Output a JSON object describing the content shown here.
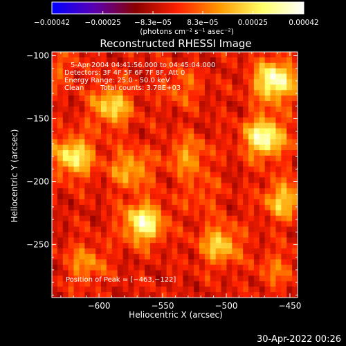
{
  "chart_data": {
    "type": "heatmap",
    "title": "Reconstructed RHESSI Image",
    "xlabel": "Heliocentric X (arcsec)",
    "ylabel": "Heliocentric Y (arcsec)",
    "xlim": [
      -637,
      -444
    ],
    "ylim": [
      -292,
      -97
    ],
    "x_ticks": [
      -600,
      -550,
      -500,
      -450
    ],
    "x_tick_labels": [
      "−600",
      "−550",
      "−500",
      "−450"
    ],
    "y_ticks": [
      -100,
      -150,
      -200,
      -250
    ],
    "y_tick_labels": [
      "−100",
      "−150",
      "−200",
      "−250"
    ],
    "colorbar": {
      "min": -0.00042,
      "max": 0.00042,
      "ticks": [
        -0.00042,
        -0.00025,
        -8.3e-05,
        8.3e-05,
        0.00025,
        0.00042
      ],
      "tick_labels": [
        "−0.00042",
        "−0.00025",
        "−8.3e−05",
        "8.3e−05",
        "0.00025",
        "0.00042"
      ],
      "label": "(photons cm⁻² s⁻¹ asec⁻²)",
      "colors": [
        "#0000ff",
        "#5a00b4",
        "#8a0000",
        "#ff2200",
        "#ff9900",
        "#ffff66",
        "#ffffff"
      ]
    },
    "annotations": {
      "time_range": "5-Apr-2004 04:41:56.000 to 04:45:04.000",
      "detectors": "Detectors: 3F 4F 5F 6F 7F 8F, Att 0",
      "energy_range": "Energy Range: 25.0 - 50.0 keV",
      "method": "Clean",
      "total_counts": "Total counts: 3.78E+03",
      "peak": "Position of Peak = [−463,−122]"
    },
    "peak": [
      -463,
      -122
    ],
    "bright_sources": [
      {
        "x": -462,
        "y": -120,
        "value": 0.00042
      },
      {
        "x": -470,
        "y": -165,
        "value": 0.0004
      },
      {
        "x": -565,
        "y": -233,
        "value": 0.00038
      },
      {
        "x": -620,
        "y": -180,
        "value": 0.00033
      },
      {
        "x": -590,
        "y": -140,
        "value": 0.00028
      },
      {
        "x": -505,
        "y": -250,
        "value": 0.00026
      },
      {
        "x": -455,
        "y": -215,
        "value": 0.00025
      },
      {
        "x": -575,
        "y": -190,
        "value": 0.00022
      },
      {
        "x": -530,
        "y": -180,
        "value": 0.00018
      },
      {
        "x": -610,
        "y": -265,
        "value": 0.00017
      },
      {
        "x": -535,
        "y": -125,
        "value": 0.00012
      },
      {
        "x": -460,
        "y": -270,
        "value": 0.00012
      },
      {
        "x": -520,
        "y": -210,
        "value": 9e-05
      },
      {
        "x": -630,
        "y": -110,
        "value": 9e-05
      }
    ]
  },
  "footer": {
    "timestamp": "30-Apr-2022 00:26"
  }
}
